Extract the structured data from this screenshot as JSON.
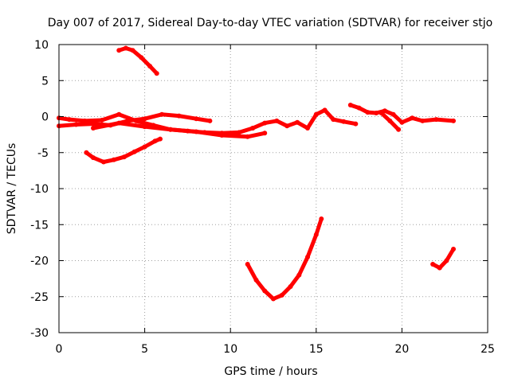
{
  "chart_data": {
    "type": "scatter",
    "title": "Day 007 of 2017, Sidereal Day-to-day VTEC variation (SDTVAR) for receiver stjo",
    "xlabel": "GPS time / hours",
    "ylabel": "SDTVAR / TECUs",
    "xlim": [
      0,
      25
    ],
    "ylim": [
      -30,
      10
    ],
    "xticks": [
      0,
      5,
      10,
      15,
      20,
      25
    ],
    "yticks": [
      -30,
      -25,
      -20,
      -15,
      -10,
      -5,
      0,
      5,
      10
    ],
    "grid": true,
    "legend": "none",
    "series_color": "#ff0000",
    "series": [
      {
        "segments": [
          [
            [
              3.5,
              9.2
            ],
            [
              3.9,
              9.5
            ],
            [
              4.3,
              9.2
            ],
            [
              4.8,
              8.2
            ],
            [
              5.3,
              7.0
            ],
            [
              5.7,
              6.0
            ]
          ],
          [
            [
              1.6,
              -5.0
            ],
            [
              2.0,
              -5.7
            ],
            [
              2.6,
              -6.3
            ],
            [
              3.2,
              -6.0
            ],
            [
              3.8,
              -5.6
            ],
            [
              4.4,
              -4.9
            ],
            [
              5.0,
              -4.2
            ],
            [
              5.6,
              -3.4
            ],
            [
              5.9,
              -3.1
            ]
          ],
          [
            [
              0.0,
              -0.2
            ],
            [
              0.6,
              -0.4
            ],
            [
              1.5,
              -0.6
            ],
            [
              2.5,
              -0.5
            ],
            [
              3.5,
              0.3
            ],
            [
              4.5,
              -0.6
            ],
            [
              5.5,
              -1.2
            ],
            [
              6.5,
              -1.8
            ],
            [
              7.5,
              -2.0
            ],
            [
              8.5,
              -2.2
            ],
            [
              9.5,
              -2.3
            ],
            [
              10.5,
              -2.2
            ],
            [
              11.3,
              -1.6
            ]
          ],
          [
            [
              0.0,
              -1.3
            ],
            [
              1.0,
              -1.1
            ],
            [
              2.0,
              -1.0
            ],
            [
              3.0,
              -1.2
            ],
            [
              4.0,
              -0.6
            ],
            [
              5.0,
              -0.3
            ],
            [
              6.0,
              0.3
            ],
            [
              7.0,
              0.1
            ],
            [
              8.0,
              -0.3
            ],
            [
              8.8,
              -0.6
            ]
          ],
          [
            [
              2.0,
              -1.6
            ],
            [
              3.5,
              -0.9
            ],
            [
              5.0,
              -1.4
            ],
            [
              6.5,
              -1.8
            ],
            [
              8.0,
              -2.1
            ],
            [
              9.5,
              -2.6
            ],
            [
              11.0,
              -2.8
            ],
            [
              12.0,
              -2.3
            ]
          ],
          [
            [
              11.3,
              -1.6
            ],
            [
              12.0,
              -0.9
            ],
            [
              12.7,
              -0.6
            ],
            [
              13.3,
              -1.3
            ],
            [
              13.9,
              -0.8
            ],
            [
              14.5,
              -1.6
            ],
            [
              15.0,
              0.3
            ],
            [
              15.5,
              0.9
            ],
            [
              16.0,
              -0.4
            ],
            [
              16.6,
              -0.7
            ],
            [
              17.3,
              -1.0
            ]
          ],
          [
            [
              17.0,
              1.6
            ],
            [
              17.5,
              1.2
            ],
            [
              18.0,
              0.6
            ],
            [
              18.5,
              0.5
            ],
            [
              19.0,
              0.8
            ],
            [
              19.5,
              0.3
            ],
            [
              20.0,
              -0.8
            ],
            [
              20.6,
              -0.2
            ],
            [
              21.2,
              -0.6
            ],
            [
              22.0,
              -0.4
            ],
            [
              23.0,
              -0.6
            ]
          ],
          [
            [
              18.8,
              0.5
            ],
            [
              19.3,
              -0.6
            ],
            [
              19.8,
              -1.8
            ]
          ],
          [
            [
              11.0,
              -20.5
            ],
            [
              11.5,
              -22.7
            ],
            [
              12.0,
              -24.2
            ],
            [
              12.5,
              -25.3
            ],
            [
              13.0,
              -24.8
            ],
            [
              13.5,
              -23.6
            ],
            [
              14.0,
              -22.0
            ],
            [
              14.5,
              -19.5
            ],
            [
              15.0,
              -16.4
            ],
            [
              15.3,
              -14.2
            ]
          ],
          [
            [
              21.8,
              -20.5
            ],
            [
              22.2,
              -21.0
            ],
            [
              22.6,
              -20.0
            ],
            [
              23.0,
              -18.4
            ]
          ]
        ]
      }
    ]
  }
}
